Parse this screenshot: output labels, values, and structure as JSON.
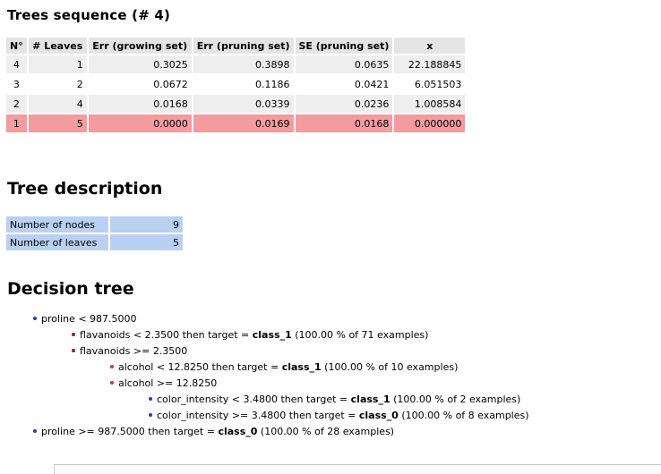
{
  "sequence": {
    "title": "Trees sequence (# 4)",
    "headers": [
      "N°",
      "# Leaves",
      "Err (growing set)",
      "Err (pruning set)",
      "SE (pruning set)",
      "x"
    ],
    "rows": [
      [
        "4",
        "1",
        "0.3025",
        "0.3898",
        "0.0635",
        "22.188845"
      ],
      [
        "3",
        "2",
        "0.0672",
        "0.1186",
        "0.0421",
        "6.051503"
      ],
      [
        "2",
        "4",
        "0.0168",
        "0.0339",
        "0.0236",
        "1.008584"
      ],
      [
        "1",
        "5",
        "0.0000",
        "0.0169",
        "0.0168",
        "0.000000"
      ]
    ],
    "selected_row_index": 3,
    "colors": {
      "header": "#e4e4e4",
      "row": "#eeeeee",
      "selected": "#f29ca0"
    }
  },
  "description": {
    "title": "Tree description",
    "rows": [
      {
        "label": "Number of nodes",
        "value": "9"
      },
      {
        "label": "Number of leaves",
        "value": "5"
      }
    ],
    "color": "#b9d0f1"
  },
  "decision_tree": {
    "title": "Decision tree",
    "nodes": [
      {
        "pre": "proline < 987.5000",
        "cls": "",
        "post": ""
      },
      {
        "pre": "flavanoids < 2.3500 then target = ",
        "cls": "class_1",
        "post": " (100.00 % of 71 examples)"
      },
      {
        "pre": "flavanoids >= 2.3500",
        "cls": "",
        "post": ""
      },
      {
        "pre": "alcohol < 12.8250 then target = ",
        "cls": "class_1",
        "post": " (100.00 % of 10 examples)"
      },
      {
        "pre": "alcohol >= 12.8250",
        "cls": "",
        "post": ""
      },
      {
        "pre": "color_intensity < 3.4800 then target = ",
        "cls": "class_1",
        "post": " (100.00 % of 2 examples)"
      },
      {
        "pre": "color_intensity >= 3.4800 then target = ",
        "cls": "class_0",
        "post": " (100.00 % of 8 examples)"
      },
      {
        "pre": "proline >= 987.5000 then target = ",
        "cls": "class_0",
        "post": " (100.00 % of 28 examples)"
      }
    ]
  }
}
